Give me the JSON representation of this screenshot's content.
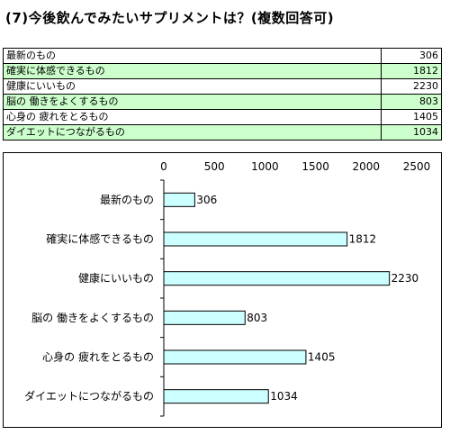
{
  "title": "(7)今後飲んでみたいサプリメントは？(複数回答可)",
  "table": {
    "rows": [
      {
        "label": "最新のもの",
        "value": "306"
      },
      {
        "label": "確実に体感できるもの",
        "value": "1812"
      },
      {
        "label": "健康にいいもの",
        "value": "2230"
      },
      {
        "label": "脳の 働きをよくするもの",
        "value": "803"
      },
      {
        "label": "心身の 疲れをとるもの",
        "value": "1405"
      },
      {
        "label": "ダイエットにつながるもの",
        "value": "1034"
      }
    ]
  },
  "chart_data": {
    "type": "bar",
    "orientation": "horizontal",
    "categories": [
      "最新のもの",
      "確実に体感できるもの",
      "健康にいいもの",
      "脳の 働きをよくするもの",
      "心身の 疲れをとるもの",
      "ダイエットにつながるもの"
    ],
    "values": [
      306,
      1812,
      2230,
      803,
      1405,
      1034
    ],
    "xlim": [
      0,
      2500
    ],
    "xticks": [
      "0",
      "500",
      "1000",
      "1500",
      "2000",
      "2500"
    ],
    "x_axis_position": "top",
    "grid": false,
    "legend": "none",
    "bar_color": "#ccffff",
    "bar_edge_color": "#000000"
  }
}
